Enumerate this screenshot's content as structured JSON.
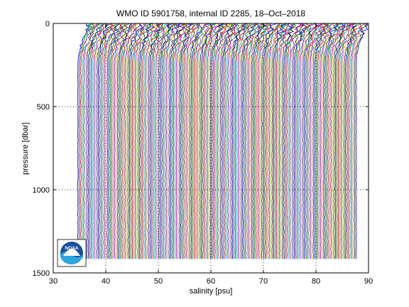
{
  "chart_data": {
    "type": "line",
    "title": "WMO ID 5901758, internal ID 2285, 18–Oct–2018",
    "xlabel": "salinity [psu]",
    "ylabel": "pressure [dbar]",
    "xlim": [
      30,
      90
    ],
    "ylim": [
      0,
      1500
    ],
    "y_reversed": true,
    "xticks": [
      "30",
      "40",
      "50",
      "60",
      "70",
      "80",
      "90"
    ],
    "yticks": [
      "0",
      "500",
      "1000",
      "1500"
    ],
    "grid": "dotted",
    "profile_count": 190,
    "profile_first_salinity_offset": 34.5,
    "profile_offset_step": 0.28,
    "profile_max_pressure": 1420,
    "profile_min_pressure": 0,
    "profile_colors": [
      "#0000ff",
      "#008000",
      "#ff0000",
      "#00bfbf",
      "#bf00bf",
      "#bfbf00",
      "#404040"
    ],
    "logo": {
      "name": "noaa-logo",
      "text": "NOAA"
    }
  }
}
